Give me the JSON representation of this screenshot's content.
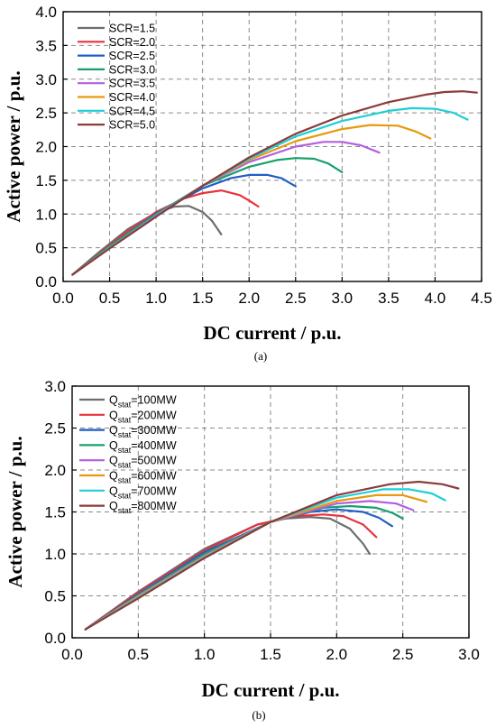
{
  "chart_data": [
    {
      "type": "line",
      "caption": "(a)",
      "xlabel": "DC current / p.u.",
      "ylabel": "Active power / p.u.",
      "xlim": [
        0,
        4.5
      ],
      "ylim": [
        0,
        4.0
      ],
      "xticks": [
        "0.0",
        "0.5",
        "1.0",
        "1.5",
        "2.0",
        "2.5",
        "3.0",
        "3.5",
        "4.0",
        "4.5"
      ],
      "yticks": [
        "0.0",
        "0.5",
        "1.0",
        "1.5",
        "2.0",
        "2.5",
        "3.0",
        "3.5",
        "4.0"
      ],
      "grid": true,
      "legend_position": "top-left",
      "series": [
        {
          "name": "SCR=1.5",
          "color": "#6d6d6d",
          "x": [
            0.1,
            0.4,
            0.7,
            1.0,
            1.2,
            1.35,
            1.5,
            1.6,
            1.7
          ],
          "y": [
            0.1,
            0.45,
            0.78,
            1.02,
            1.11,
            1.12,
            1.03,
            0.9,
            0.7
          ]
        },
        {
          "name": "SCR=2.0",
          "color": "#e8323c",
          "x": [
            0.1,
            0.4,
            0.7,
            1.0,
            1.3,
            1.5,
            1.7,
            1.9,
            2.0,
            2.1
          ],
          "y": [
            0.1,
            0.43,
            0.75,
            1.03,
            1.23,
            1.31,
            1.35,
            1.28,
            1.2,
            1.11
          ]
        },
        {
          "name": "SCR=2.5",
          "color": "#1f5fc4",
          "x": [
            0.1,
            0.5,
            1.0,
            1.5,
            1.8,
            2.0,
            2.2,
            2.35,
            2.5
          ],
          "y": [
            0.1,
            0.52,
            1.01,
            1.38,
            1.53,
            1.58,
            1.58,
            1.53,
            1.41
          ]
        },
        {
          "name": "SCR=3.0",
          "color": "#17a06a",
          "x": [
            0.1,
            0.5,
            1.0,
            1.5,
            2.0,
            2.3,
            2.5,
            2.7,
            2.85,
            3.0
          ],
          "y": [
            0.1,
            0.52,
            1.0,
            1.42,
            1.7,
            1.8,
            1.83,
            1.82,
            1.75,
            1.62
          ]
        },
        {
          "name": "SCR=3.5",
          "color": "#b45ee0",
          "x": [
            0.1,
            0.5,
            1.0,
            1.5,
            2.0,
            2.5,
            2.8,
            3.0,
            3.2,
            3.4
          ],
          "y": [
            0.1,
            0.5,
            0.98,
            1.42,
            1.77,
            2.0,
            2.07,
            2.07,
            2.02,
            1.91
          ]
        },
        {
          "name": "SCR=4.0",
          "color": "#e69a0e",
          "x": [
            0.1,
            0.5,
            1.0,
            1.5,
            2.0,
            2.5,
            3.0,
            3.3,
            3.6,
            3.8,
            3.95
          ],
          "y": [
            0.1,
            0.5,
            0.97,
            1.42,
            1.8,
            2.08,
            2.26,
            2.32,
            2.31,
            2.22,
            2.12
          ]
        },
        {
          "name": "SCR=4.5",
          "color": "#1fcfd6",
          "x": [
            0.1,
            0.5,
            1.0,
            1.5,
            2.0,
            2.5,
            3.0,
            3.5,
            3.75,
            4.0,
            4.2,
            4.35
          ],
          "y": [
            0.1,
            0.5,
            0.97,
            1.42,
            1.82,
            2.15,
            2.38,
            2.53,
            2.57,
            2.56,
            2.5,
            2.4
          ]
        },
        {
          "name": "SCR=5.0",
          "color": "#8b3a3a",
          "x": [
            0.1,
            0.5,
            1.0,
            1.5,
            2.0,
            2.5,
            3.0,
            3.5,
            3.9,
            4.1,
            4.3,
            4.45
          ],
          "y": [
            0.1,
            0.49,
            0.96,
            1.42,
            1.84,
            2.19,
            2.46,
            2.66,
            2.77,
            2.81,
            2.82,
            2.8
          ]
        }
      ]
    },
    {
      "type": "line",
      "caption": "(b)",
      "xlabel": "DC current / p.u.",
      "ylabel": "Active power / p.u.",
      "xlim": [
        0,
        3.0
      ],
      "ylim": [
        0,
        3.0
      ],
      "xticks": [
        "0.0",
        "0.5",
        "1.0",
        "1.5",
        "2.0",
        "2.5",
        "3.0"
      ],
      "yticks": [
        "0.0",
        "0.5",
        "1.0",
        "1.5",
        "2.0",
        "2.5",
        "3.0"
      ],
      "grid": true,
      "legend_position": "top-left",
      "legend_subscript": "stat",
      "series": [
        {
          "name": "Q",
          "name_suffix": "=100MW",
          "color": "#6d6d6d",
          "x": [
            0.1,
            0.5,
            1.0,
            1.4,
            1.6,
            1.8,
            1.95,
            2.1,
            2.2,
            2.25
          ],
          "y": [
            0.1,
            0.55,
            1.06,
            1.35,
            1.42,
            1.44,
            1.42,
            1.3,
            1.12,
            1.0
          ]
        },
        {
          "name": "Q",
          "name_suffix": "=200MW",
          "color": "#e8323c",
          "x": [
            0.1,
            0.5,
            1.0,
            1.4,
            1.7,
            1.9,
            2.05,
            2.2,
            2.3
          ],
          "y": [
            0.1,
            0.54,
            1.04,
            1.35,
            1.45,
            1.47,
            1.45,
            1.35,
            1.2
          ]
        },
        {
          "name": "Q",
          "name_suffix": "=300MW",
          "color": "#1f5fc4",
          "x": [
            0.1,
            0.5,
            1.0,
            1.5,
            1.8,
            2.0,
            2.2,
            2.32,
            2.42
          ],
          "y": [
            0.1,
            0.52,
            1.02,
            1.38,
            1.5,
            1.53,
            1.5,
            1.43,
            1.33
          ]
        },
        {
          "name": "Q",
          "name_suffix": "=400MW",
          "color": "#17a06a",
          "x": [
            0.1,
            0.5,
            1.0,
            1.5,
            1.9,
            2.1,
            2.3,
            2.42,
            2.5
          ],
          "y": [
            0.1,
            0.51,
            1.0,
            1.38,
            1.55,
            1.57,
            1.55,
            1.49,
            1.42
          ]
        },
        {
          "name": "Q",
          "name_suffix": "=500MW",
          "color": "#b45ee0",
          "x": [
            0.1,
            0.5,
            1.0,
            1.5,
            2.0,
            2.25,
            2.45,
            2.58
          ],
          "y": [
            0.1,
            0.5,
            0.98,
            1.38,
            1.6,
            1.63,
            1.6,
            1.52
          ]
        },
        {
          "name": "Q",
          "name_suffix": "=600MW",
          "color": "#e69a0e",
          "x": [
            0.1,
            0.5,
            1.0,
            1.5,
            2.0,
            2.3,
            2.5,
            2.68
          ],
          "y": [
            0.1,
            0.49,
            0.97,
            1.38,
            1.63,
            1.7,
            1.7,
            1.62
          ]
        },
        {
          "name": "Q",
          "name_suffix": "=700MW",
          "color": "#1fcfd6",
          "x": [
            0.1,
            0.5,
            1.0,
            1.5,
            2.0,
            2.35,
            2.55,
            2.72,
            2.82
          ],
          "y": [
            0.1,
            0.48,
            0.96,
            1.38,
            1.67,
            1.77,
            1.77,
            1.72,
            1.64
          ]
        },
        {
          "name": "Q",
          "name_suffix": "=800MW",
          "color": "#8b3a3a",
          "x": [
            0.1,
            0.5,
            1.0,
            1.5,
            2.0,
            2.4,
            2.62,
            2.8,
            2.92
          ],
          "y": [
            0.1,
            0.47,
            0.95,
            1.38,
            1.7,
            1.83,
            1.86,
            1.83,
            1.78
          ]
        }
      ]
    }
  ]
}
